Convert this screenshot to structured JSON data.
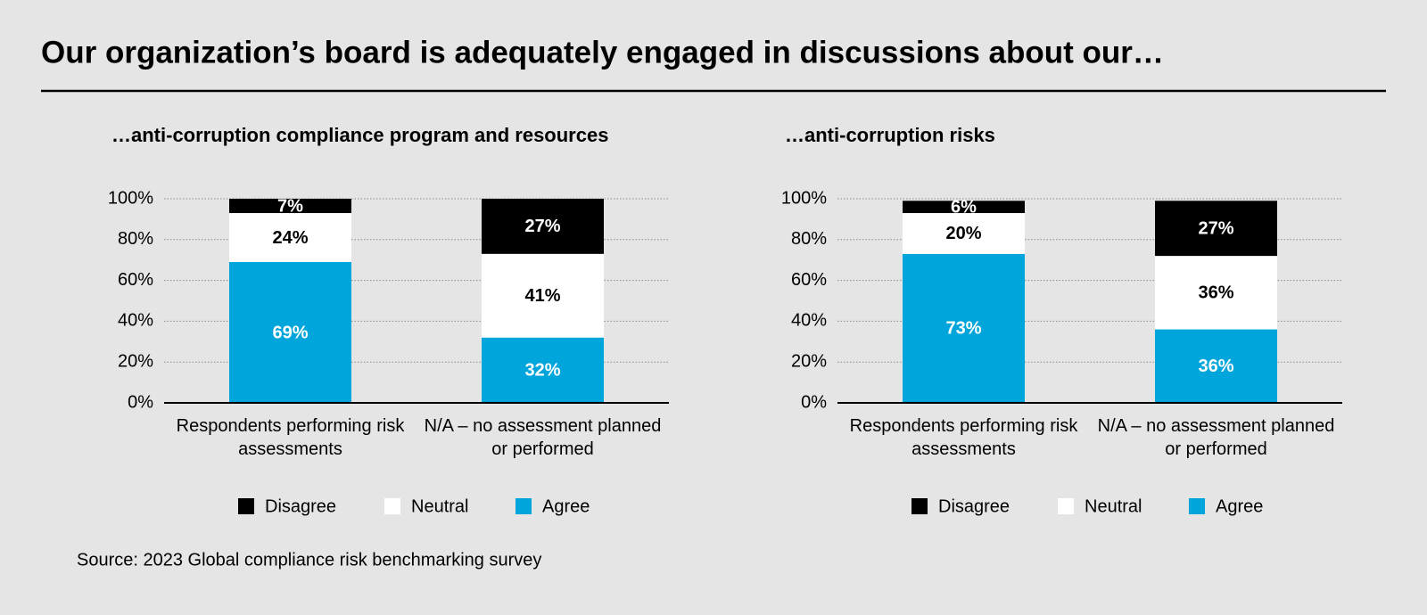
{
  "title": "Our organization’s board is adequately engaged in discussions about our…",
  "source": "Source: 2023 Global compliance risk benchmarking survey",
  "chart_data": [
    {
      "type": "bar",
      "stacked": true,
      "title": "…anti-corruption compliance program and resources",
      "categories": [
        "Respondents performing risk assessments",
        "N/A – no assessment planned or performed"
      ],
      "series": [
        {
          "name": "Agree",
          "color": "#00a5db",
          "label_color": "#ffffff",
          "values": [
            69,
            32
          ],
          "value_labels": [
            "69%",
            "32%"
          ]
        },
        {
          "name": "Neutral",
          "color": "#ffffff",
          "label_color": "#000000",
          "values": [
            24,
            41
          ],
          "value_labels": [
            "24%",
            "41%"
          ]
        },
        {
          "name": "Disagree",
          "color": "#000000",
          "label_color": "#ffffff",
          "values": [
            7,
            27
          ],
          "value_labels": [
            "7%",
            "27%"
          ]
        }
      ],
      "ylim": [
        0,
        100
      ],
      "yticks": [
        {
          "value": 0,
          "label": "0%"
        },
        {
          "value": 20,
          "label": "20%"
        },
        {
          "value": 40,
          "label": "40%"
        },
        {
          "value": 60,
          "label": "60%"
        },
        {
          "value": 80,
          "label": "80%"
        },
        {
          "value": 100,
          "label": "100%"
        }
      ],
      "grid": true
    },
    {
      "type": "bar",
      "stacked": true,
      "title": "…anti-corruption risks",
      "categories": [
        "Respondents performing risk assessments",
        "N/A – no assessment planned or performed"
      ],
      "series": [
        {
          "name": "Agree",
          "color": "#00a5db",
          "label_color": "#ffffff",
          "values": [
            73,
            36
          ],
          "value_labels": [
            "73%",
            "36%"
          ]
        },
        {
          "name": "Neutral",
          "color": "#ffffff",
          "label_color": "#000000",
          "values": [
            20,
            36
          ],
          "value_labels": [
            "20%",
            "36%"
          ]
        },
        {
          "name": "Disagree",
          "color": "#000000",
          "label_color": "#ffffff",
          "values": [
            6,
            27
          ],
          "value_labels": [
            "6%",
            "27%"
          ]
        }
      ],
      "ylim": [
        0,
        100
      ],
      "yticks": [
        {
          "value": 0,
          "label": "0%"
        },
        {
          "value": 20,
          "label": "20%"
        },
        {
          "value": 40,
          "label": "40%"
        },
        {
          "value": 60,
          "label": "60%"
        },
        {
          "value": 80,
          "label": "80%"
        },
        {
          "value": 100,
          "label": "100%"
        }
      ],
      "grid": true
    }
  ]
}
